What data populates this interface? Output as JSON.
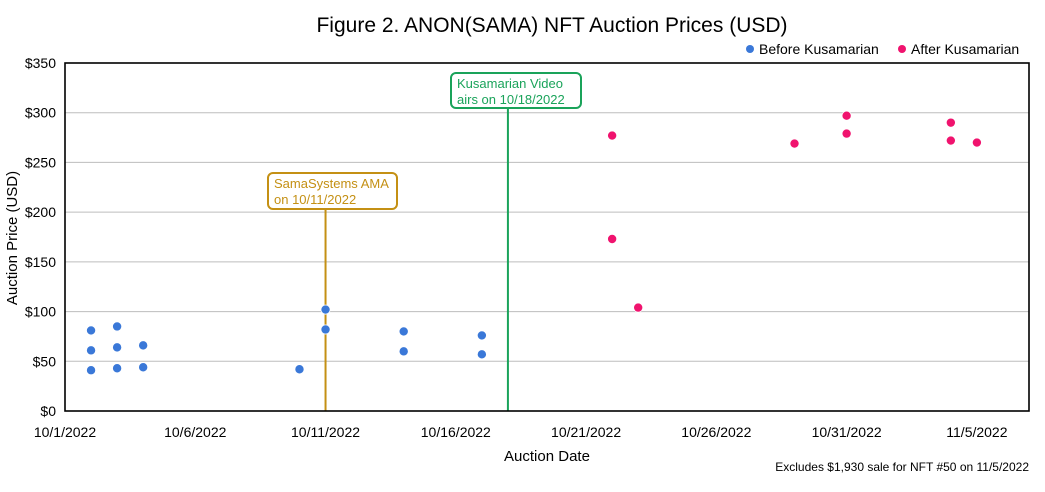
{
  "chart_data": {
    "type": "scatter",
    "title": "Figure 2. ANON(SAMA) NFT Auction Prices (USD)",
    "xlabel": "Auction Date",
    "ylabel": "Auction Price (USD)",
    "footnote": "Excludes $1,930 sale for NFT #50 on 11/5/2022",
    "x_ticks": [
      "10/1/2022",
      "10/6/2022",
      "10/11/2022",
      "10/16/2022",
      "10/21/2022",
      "10/26/2022",
      "10/31/2022",
      "11/5/2022"
    ],
    "x_range_days": [
      0,
      37
    ],
    "y_ticks": [
      "$0",
      "$50",
      "$100",
      "$150",
      "$200",
      "$250",
      "$300",
      "$350"
    ],
    "ylim": [
      0,
      350
    ],
    "grid": true,
    "legend_position": "top-right",
    "series": [
      {
        "name": "Before Kusamarian",
        "color": "#3a78d8",
        "points": [
          {
            "day": 1,
            "value": 81
          },
          {
            "day": 1,
            "value": 61
          },
          {
            "day": 1,
            "value": 41
          },
          {
            "day": 2,
            "value": 85
          },
          {
            "day": 2,
            "value": 64
          },
          {
            "day": 2,
            "value": 43
          },
          {
            "day": 3,
            "value": 66
          },
          {
            "day": 3,
            "value": 44
          },
          {
            "day": 9,
            "value": 42
          },
          {
            "day": 10,
            "value": 102
          },
          {
            "day": 10,
            "value": 82
          },
          {
            "day": 13,
            "value": 80
          },
          {
            "day": 13,
            "value": 60
          },
          {
            "day": 16,
            "value": 76
          },
          {
            "day": 16,
            "value": 57
          }
        ]
      },
      {
        "name": "After Kusamarian",
        "color": "#f0136e",
        "points": [
          {
            "day": 21,
            "value": 277
          },
          {
            "day": 21,
            "value": 173
          },
          {
            "day": 22,
            "value": 104
          },
          {
            "day": 28,
            "value": 269
          },
          {
            "day": 30,
            "value": 297
          },
          {
            "day": 30,
            "value": 279
          },
          {
            "day": 34,
            "value": 290
          },
          {
            "day": 34,
            "value": 272
          },
          {
            "day": 35,
            "value": 270
          }
        ]
      }
    ],
    "annotations": [
      {
        "name": "samasystems-ama",
        "line1": "SamaSystems AMA",
        "line2": "on 10/11/2022",
        "day": 10,
        "color": "#c49014"
      },
      {
        "name": "kusamarian-video",
        "line1": "Kusamarian Video",
        "line2": "airs on 10/18/2022",
        "day": 17,
        "color": "#1aa35a"
      }
    ]
  }
}
